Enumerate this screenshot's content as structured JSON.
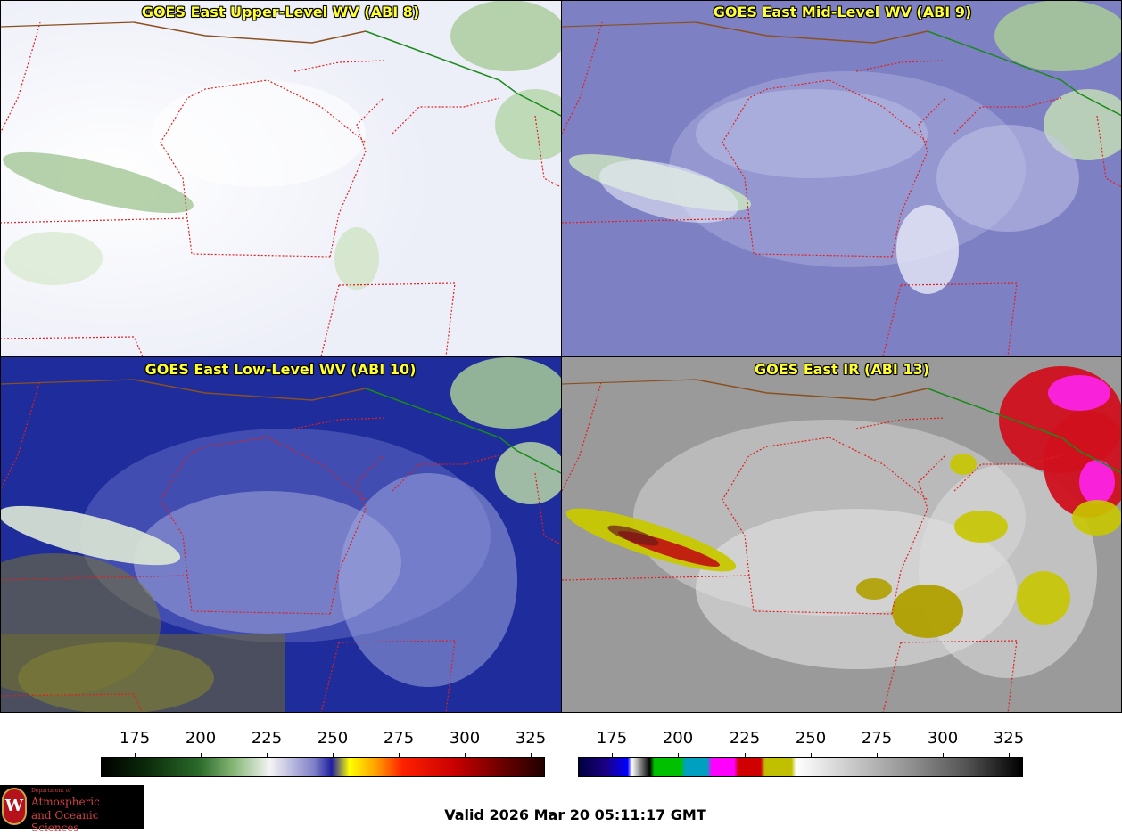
{
  "panels": [
    {
      "title": "GOES East Upper-Level WV (ABI 8)"
    },
    {
      "title": "GOES East Mid-Level WV (ABI 9)"
    },
    {
      "title": "GOES East Low-Level WV (ABI 10)"
    },
    {
      "title": "GOES East IR (ABI 13)"
    }
  ],
  "colorbars": [
    {
      "ticks": [
        "175",
        "200",
        "225",
        "250",
        "275",
        "300",
        "325"
      ]
    },
    {
      "ticks": [
        "175",
        "200",
        "225",
        "250",
        "275",
        "300",
        "325"
      ]
    }
  ],
  "valid_time": "Valid 2026 Mar 20 05:11:17 GMT",
  "logo": {
    "department": "Department of",
    "line1": "Atmospheric",
    "line2": "and Oceanic Sciences",
    "seal": "W"
  },
  "colors": {
    "title_text": "#ffff33",
    "state_border": "#e02020",
    "canada_border": "#1a8a1a",
    "coast": "#8a5020"
  }
}
